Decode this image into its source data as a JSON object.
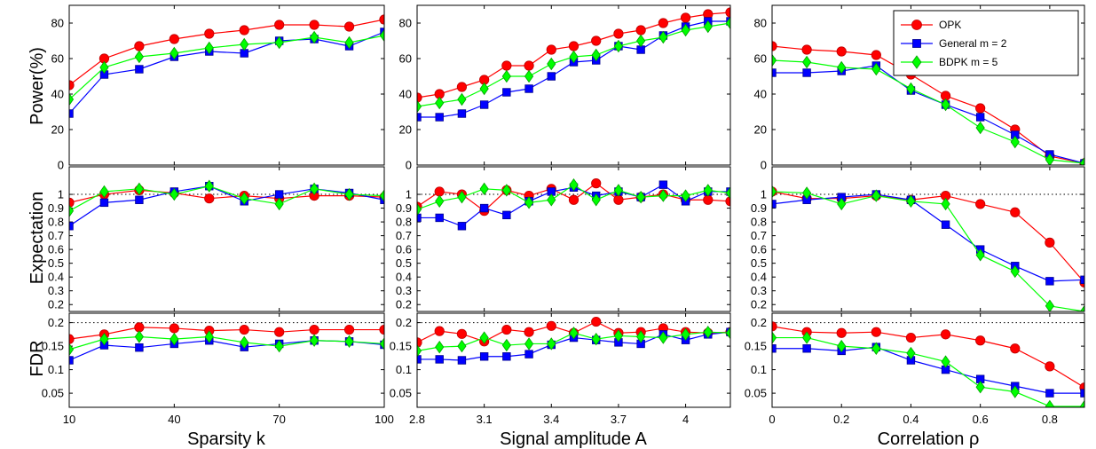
{
  "figure": {
    "row_labels": [
      "Power(%)",
      "Expectation",
      "FDR"
    ],
    "col_labels": [
      "Sparsity k",
      "Signal amplitude A",
      "Correlation ρ"
    ]
  },
  "legend": {
    "placement": "top-right",
    "entries": [
      {
        "label": "OPK",
        "color": "#ff0000",
        "marker": "circle"
      },
      {
        "label": "General m = 2",
        "color": "#0000ff",
        "marker": "square"
      },
      {
        "label": "BDPK m = 5",
        "color": "#00ff00",
        "marker": "diamond"
      }
    ]
  },
  "columns": [
    {
      "xlim": [
        10,
        100
      ],
      "xticks": [
        10,
        40,
        70,
        100
      ],
      "xtick_labels": [
        "10",
        "40",
        "70",
        "100"
      ],
      "x": [
        10,
        20,
        30,
        40,
        50,
        60,
        70,
        80,
        90,
        100
      ]
    },
    {
      "xlim": [
        2.8,
        4.2
      ],
      "xticks": [
        2.8,
        3.1,
        3.4,
        3.7,
        4.0
      ],
      "xtick_labels": [
        "2.8",
        "3.1",
        "3.4",
        "3.7",
        "4"
      ],
      "x": [
        2.8,
        2.9,
        3.0,
        3.1,
        3.2,
        3.3,
        3.4,
        3.5,
        3.6,
        3.7,
        3.8,
        3.9,
        4.0,
        4.1,
        4.2
      ]
    },
    {
      "xlim": [
        0,
        0.9
      ],
      "xticks": [
        0,
        0.2,
        0.4,
        0.6,
        0.8
      ],
      "xtick_labels": [
        "0",
        "0.2",
        "0.4",
        "0.6",
        "0.8"
      ],
      "x": [
        0,
        0.1,
        0.2,
        0.3,
        0.4,
        0.5,
        0.6,
        0.7,
        0.8,
        0.9
      ]
    }
  ],
  "rows": [
    {
      "ylim": [
        0,
        90
      ],
      "yticks": [
        0,
        20,
        40,
        60,
        80
      ],
      "ytick_labels": [
        "0",
        "20",
        "40",
        "60",
        "80"
      ],
      "ref_line": null
    },
    {
      "ylim": [
        0.15,
        1.2
      ],
      "yticks": [
        0.2,
        0.3,
        0.4,
        0.5,
        0.6,
        0.7,
        0.8,
        0.9,
        1.0
      ],
      "ytick_labels": [
        "0.2",
        "0.3",
        "0.4",
        "0.5",
        "0.6",
        "0.7",
        "0.8",
        "0.9",
        "1"
      ],
      "ref_line": 1.0
    },
    {
      "ylim": [
        0.02,
        0.22
      ],
      "yticks": [
        0.05,
        0.1,
        0.15,
        0.2
      ],
      "ytick_labels": [
        "0.05",
        "0.1",
        "0.15",
        "0.2"
      ],
      "ref_line": 0.2
    }
  ],
  "chart_data": [
    {
      "type": "line",
      "title": "",
      "xlabel": "",
      "ylabel": "Power(%)",
      "xlim": [
        10,
        100
      ],
      "ylim": [
        0,
        90
      ],
      "grid": false,
      "x": [
        10,
        20,
        30,
        40,
        50,
        60,
        70,
        80,
        90,
        100
      ],
      "series": [
        {
          "name": "OPK",
          "values": [
            45,
            60,
            67,
            71,
            74,
            76,
            79,
            79,
            78,
            82
          ]
        },
        {
          "name": "General m = 2",
          "values": [
            29,
            51,
            54,
            61,
            64,
            63,
            70,
            71,
            67,
            75
          ]
        },
        {
          "name": "BDPK m = 5",
          "values": [
            37,
            55,
            61,
            63,
            66,
            68,
            69,
            72,
            69,
            73
          ]
        }
      ]
    },
    {
      "type": "line",
      "title": "",
      "xlabel": "",
      "ylabel": "",
      "xlim": [
        2.8,
        4.2
      ],
      "ylim": [
        0,
        90
      ],
      "grid": false,
      "x": [
        2.8,
        2.9,
        3.0,
        3.1,
        3.2,
        3.3,
        3.4,
        3.5,
        3.6,
        3.7,
        3.8,
        3.9,
        4.0,
        4.1,
        4.2
      ],
      "series": [
        {
          "name": "OPK",
          "values": [
            38,
            40,
            44,
            48,
            56,
            56,
            65,
            67,
            70,
            74,
            76,
            80,
            83,
            85,
            86
          ]
        },
        {
          "name": "General m = 2",
          "values": [
            27,
            27,
            29,
            34,
            41,
            43,
            50,
            58,
            59,
            67,
            65,
            73,
            78,
            81,
            81
          ]
        },
        {
          "name": "BDPK m = 5",
          "values": [
            33,
            35,
            37,
            43,
            50,
            50,
            57,
            61,
            62,
            67,
            70,
            72,
            76,
            78,
            80
          ]
        }
      ]
    },
    {
      "type": "line",
      "title": "",
      "xlabel": "",
      "ylabel": "",
      "xlim": [
        0,
        0.9
      ],
      "ylim": [
        0,
        90
      ],
      "grid": false,
      "x": [
        0,
        0.1,
        0.2,
        0.3,
        0.4,
        0.5,
        0.6,
        0.7,
        0.8,
        0.9
      ],
      "series": [
        {
          "name": "OPK",
          "values": [
            67,
            65,
            64,
            62,
            51,
            39,
            32,
            20,
            5,
            1
          ]
        },
        {
          "name": "General m = 2",
          "values": [
            52,
            52,
            53,
            56,
            42,
            34,
            27,
            17,
            6,
            1
          ]
        },
        {
          "name": "BDPK m = 5",
          "values": [
            59,
            58,
            55,
            54,
            43,
            34,
            21,
            13,
            3,
            1
          ]
        }
      ]
    },
    {
      "type": "line",
      "title": "",
      "xlabel": "",
      "ylabel": "Expectation",
      "xlim": [
        10,
        100
      ],
      "ylim": [
        0.15,
        1.2
      ],
      "grid": false,
      "x": [
        10,
        20,
        30,
        40,
        50,
        60,
        70,
        80,
        90,
        100
      ],
      "series": [
        {
          "name": "OPK",
          "values": [
            0.94,
            1.0,
            1.03,
            1.01,
            0.97,
            0.99,
            0.97,
            0.99,
            0.99,
            0.98
          ]
        },
        {
          "name": "General m = 2",
          "values": [
            0.77,
            0.94,
            0.96,
            1.02,
            1.06,
            0.95,
            1.0,
            1.04,
            1.01,
            0.96
          ]
        },
        {
          "name": "BDPK m = 5",
          "values": [
            0.88,
            1.02,
            1.04,
            1.0,
            1.06,
            0.97,
            0.93,
            1.04,
            1.0,
            0.99
          ]
        }
      ]
    },
    {
      "type": "line",
      "title": "",
      "xlabel": "",
      "ylabel": "",
      "xlim": [
        2.8,
        4.2
      ],
      "ylim": [
        0.15,
        1.2
      ],
      "grid": false,
      "x": [
        2.8,
        2.9,
        3.0,
        3.1,
        3.2,
        3.3,
        3.4,
        3.5,
        3.6,
        3.7,
        3.8,
        3.9,
        4.0,
        4.1,
        4.2
      ],
      "series": [
        {
          "name": "OPK",
          "values": [
            0.91,
            1.02,
            1.0,
            0.88,
            1.03,
            0.99,
            1.04,
            0.96,
            1.08,
            0.96,
            0.98,
            1.0,
            0.96,
            0.96,
            0.95
          ]
        },
        {
          "name": "General m = 2",
          "values": [
            0.83,
            0.83,
            0.77,
            0.9,
            0.85,
            0.95,
            1.02,
            1.05,
            0.99,
            1.02,
            0.98,
            1.07,
            0.95,
            1.02,
            1.02
          ]
        },
        {
          "name": "BDPK m = 5",
          "values": [
            0.89,
            0.95,
            0.98,
            1.04,
            1.03,
            0.94,
            0.96,
            1.07,
            0.96,
            1.03,
            0.98,
            0.99,
            0.99,
            1.03,
            1.01
          ]
        }
      ]
    },
    {
      "type": "line",
      "title": "",
      "xlabel": "",
      "ylabel": "",
      "xlim": [
        0,
        0.9
      ],
      "ylim": [
        0.15,
        1.2
      ],
      "grid": false,
      "x": [
        0,
        0.1,
        0.2,
        0.3,
        0.4,
        0.5,
        0.6,
        0.7,
        0.8,
        0.9
      ],
      "series": [
        {
          "name": "OPK",
          "values": [
            1.02,
            0.97,
            0.97,
            0.99,
            0.96,
            0.99,
            0.93,
            0.87,
            0.65,
            0.36
          ]
        },
        {
          "name": "General m = 2",
          "values": [
            0.93,
            0.96,
            0.98,
            1.0,
            0.96,
            0.78,
            0.6,
            0.48,
            0.37,
            0.38
          ]
        },
        {
          "name": "BDPK m = 5",
          "values": [
            1.02,
            1.01,
            0.93,
            0.99,
            0.95,
            0.93,
            0.56,
            0.44,
            0.19,
            0.15
          ]
        }
      ]
    },
    {
      "type": "line",
      "title": "",
      "xlabel": "Sparsity k",
      "ylabel": "FDR",
      "xlim": [
        10,
        100
      ],
      "ylim": [
        0.02,
        0.22
      ],
      "grid": false,
      "x": [
        10,
        20,
        30,
        40,
        50,
        60,
        70,
        80,
        90,
        100
      ],
      "series": [
        {
          "name": "OPK",
          "values": [
            0.165,
            0.175,
            0.19,
            0.188,
            0.183,
            0.185,
            0.18,
            0.185,
            0.185,
            0.185
          ]
        },
        {
          "name": "General m = 2",
          "values": [
            0.12,
            0.152,
            0.147,
            0.155,
            0.162,
            0.148,
            0.155,
            0.162,
            0.16,
            0.153
          ]
        },
        {
          "name": "BDPK m = 5",
          "values": [
            0.143,
            0.165,
            0.17,
            0.165,
            0.17,
            0.158,
            0.15,
            0.162,
            0.16,
            0.155
          ]
        }
      ]
    },
    {
      "type": "line",
      "title": "",
      "xlabel": "Signal amplitude A",
      "ylabel": "",
      "xlim": [
        2.8,
        4.2
      ],
      "ylim": [
        0.02,
        0.22
      ],
      "grid": false,
      "x": [
        2.8,
        2.9,
        3.0,
        3.1,
        3.2,
        3.3,
        3.4,
        3.5,
        3.6,
        3.7,
        3.8,
        3.9,
        4.0,
        4.1,
        4.2
      ],
      "series": [
        {
          "name": "OPK",
          "values": [
            0.158,
            0.182,
            0.176,
            0.16,
            0.185,
            0.18,
            0.193,
            0.178,
            0.202,
            0.178,
            0.18,
            0.188,
            0.18,
            0.178,
            0.18
          ]
        },
        {
          "name": "General m = 2",
          "values": [
            0.122,
            0.122,
            0.12,
            0.128,
            0.128,
            0.133,
            0.153,
            0.168,
            0.163,
            0.158,
            0.155,
            0.175,
            0.163,
            0.175,
            0.18
          ]
        },
        {
          "name": "BDPK m = 5",
          "values": [
            0.14,
            0.148,
            0.15,
            0.168,
            0.152,
            0.155,
            0.155,
            0.178,
            0.165,
            0.172,
            0.17,
            0.168,
            0.175,
            0.18,
            0.178
          ]
        }
      ]
    },
    {
      "type": "line",
      "title": "",
      "xlabel": "Correlation ρ",
      "ylabel": "",
      "xlim": [
        0,
        0.9
      ],
      "ylim": [
        0.02,
        0.22
      ],
      "grid": false,
      "x": [
        0,
        0.1,
        0.2,
        0.3,
        0.4,
        0.5,
        0.6,
        0.7,
        0.8,
        0.9
      ],
      "series": [
        {
          "name": "OPK",
          "values": [
            0.192,
            0.18,
            0.178,
            0.18,
            0.168,
            0.175,
            0.162,
            0.145,
            0.107,
            0.062
          ]
        },
        {
          "name": "General m = 2",
          "values": [
            0.145,
            0.145,
            0.14,
            0.148,
            0.12,
            0.1,
            0.08,
            0.065,
            0.05,
            0.05
          ]
        },
        {
          "name": "BDPK m = 5",
          "values": [
            0.168,
            0.168,
            0.15,
            0.145,
            0.135,
            0.117,
            0.063,
            0.053,
            0.022,
            0.022
          ]
        }
      ]
    }
  ]
}
